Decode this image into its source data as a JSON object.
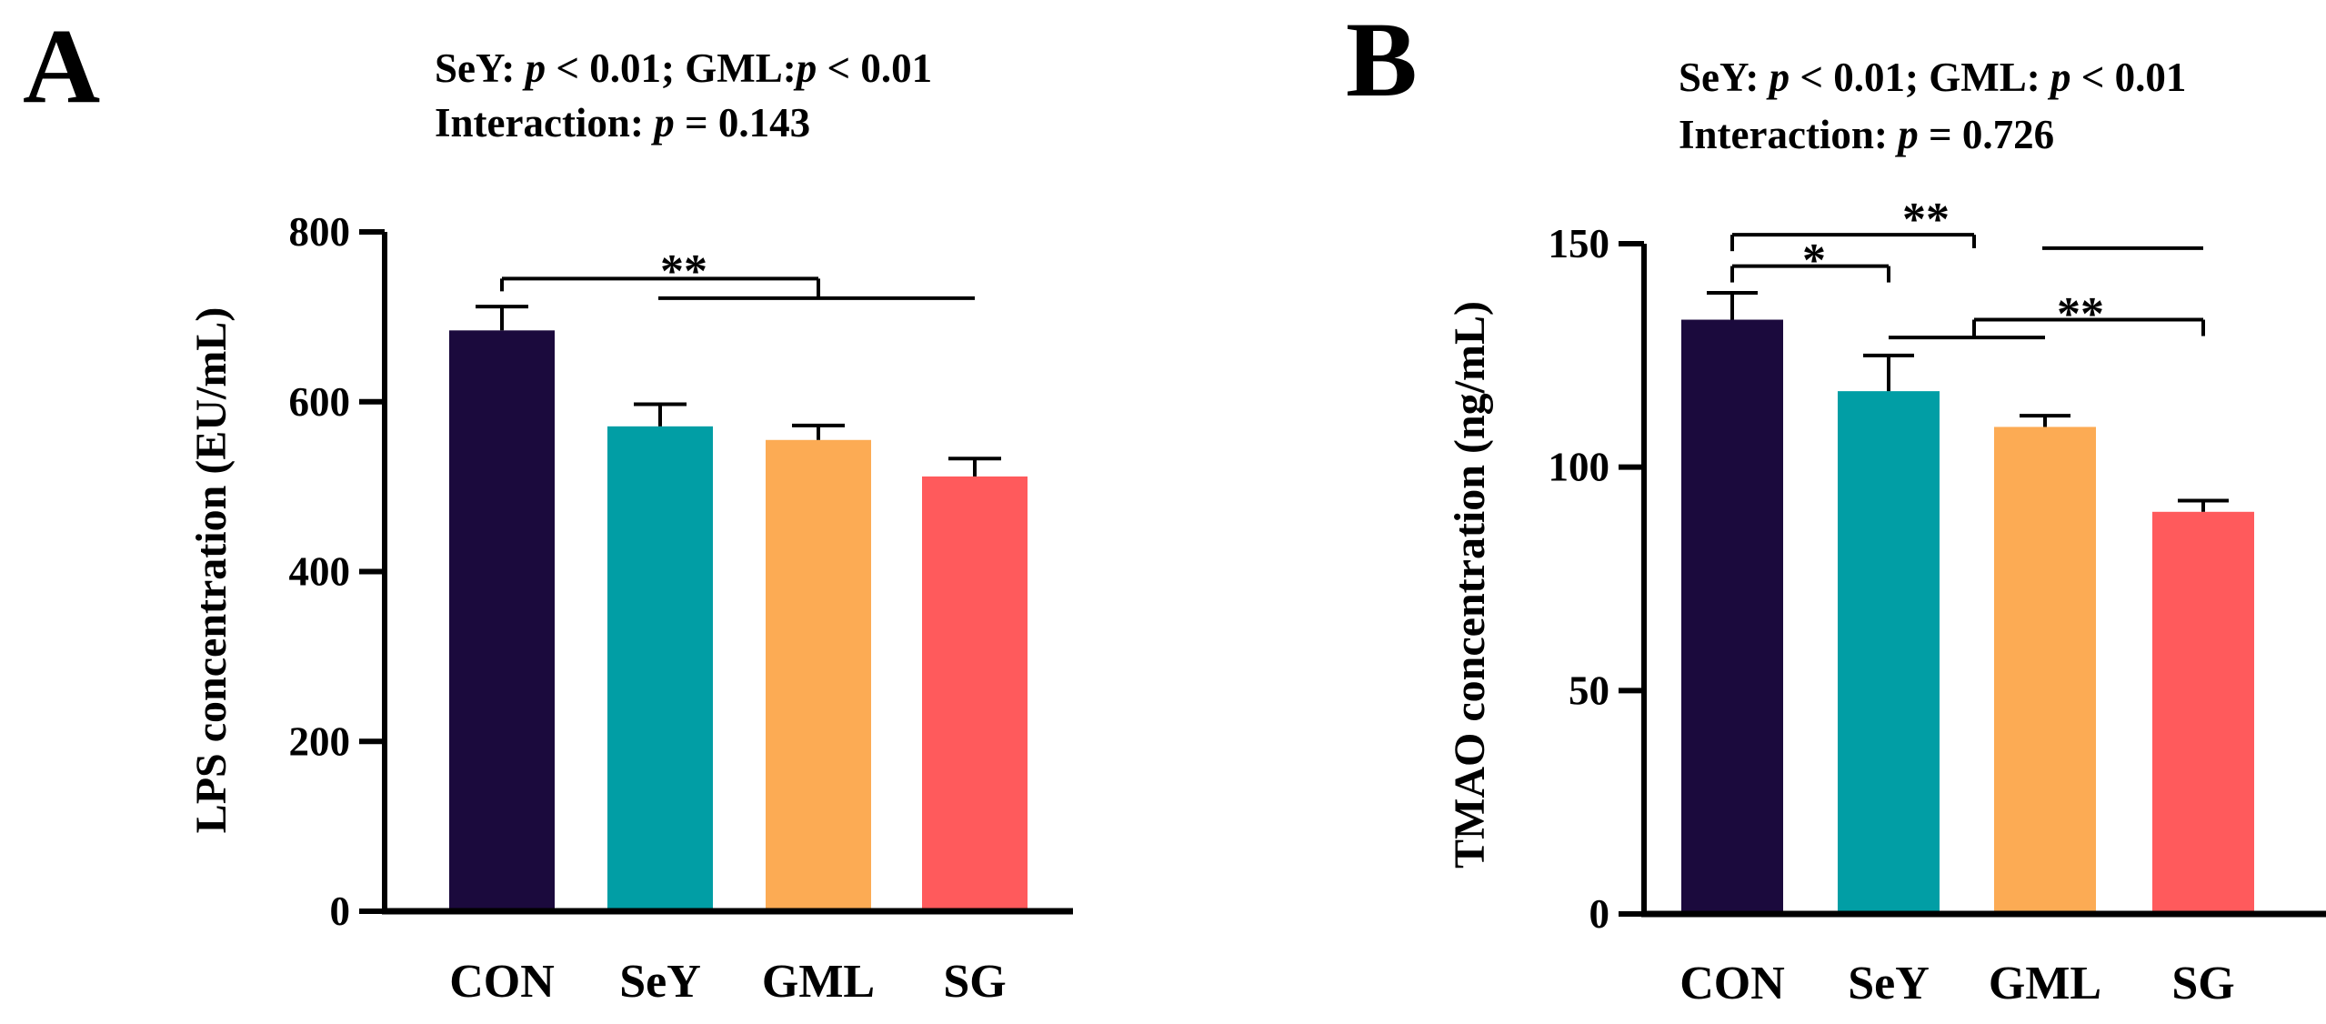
{
  "colors": {
    "CON": "#1b0a3d",
    "SeY": "#019ea5",
    "GML": "#fcab54",
    "SG": "#ff5a5c",
    "axis": "#000000"
  },
  "chart_data": [
    {
      "type": "bar",
      "panel": "A",
      "categories": [
        "CON",
        "SeY",
        "GML",
        "SG"
      ],
      "values": [
        684,
        571,
        555,
        512
      ],
      "errors": [
        28,
        26,
        17,
        21
      ],
      "ylabel": "LPS concentration (EU/mL)",
      "ylim": [
        0,
        800
      ],
      "yticks": [
        0,
        200,
        400,
        600,
        800
      ],
      "ytick_labels": [
        "0",
        "200",
        "400",
        "600",
        "800"
      ],
      "stats": {
        "line1_a": "SeY: ",
        "line1_b": "p",
        "line1_c": " < 0.01;  GML:",
        "line1_d": "p",
        "line1_e": " < 0.01",
        "line2_a": "Interaction: ",
        "line2_b": "p",
        "line2_c": " = 0.143"
      },
      "significance": [
        {
          "label": "**",
          "bracket_level_value": 745,
          "left_range": [
            0,
            2
          ],
          "right_range": [
            1,
            3
          ],
          "right_level_value": 722
        }
      ]
    },
    {
      "type": "bar",
      "panel": "B",
      "categories": [
        "CON",
        "SeY",
        "GML",
        "SG"
      ],
      "values": [
        133,
        117,
        109,
        90
      ],
      "errors": [
        6,
        8,
        2.5,
        2.5
      ],
      "ylabel": "TMAO concentration (ng/mL)",
      "ylim": [
        0,
        150
      ],
      "yticks": [
        0,
        50,
        100,
        150
      ],
      "ytick_labels": [
        "0",
        "50",
        "100",
        "150"
      ],
      "stats": {
        "line1_a": "SeY: ",
        "line1_b": "p",
        "line1_c": " < 0.01;  GML: ",
        "line1_d": "p",
        "line1_e": " < 0.01",
        "line2_a": "Interaction: ",
        "line2_b": "p",
        "line2_c": " = 0.726"
      },
      "significance": [
        {
          "label": "**",
          "from": 0,
          "to": 3,
          "level_value": 152,
          "drop_to_value": 149
        },
        {
          "label": "*",
          "from": 0,
          "to": 1,
          "level_value": 145
        },
        {
          "label": "**",
          "from": 2,
          "to": 3,
          "level_value": 133,
          "drop_to_value": 129
        }
      ]
    }
  ]
}
